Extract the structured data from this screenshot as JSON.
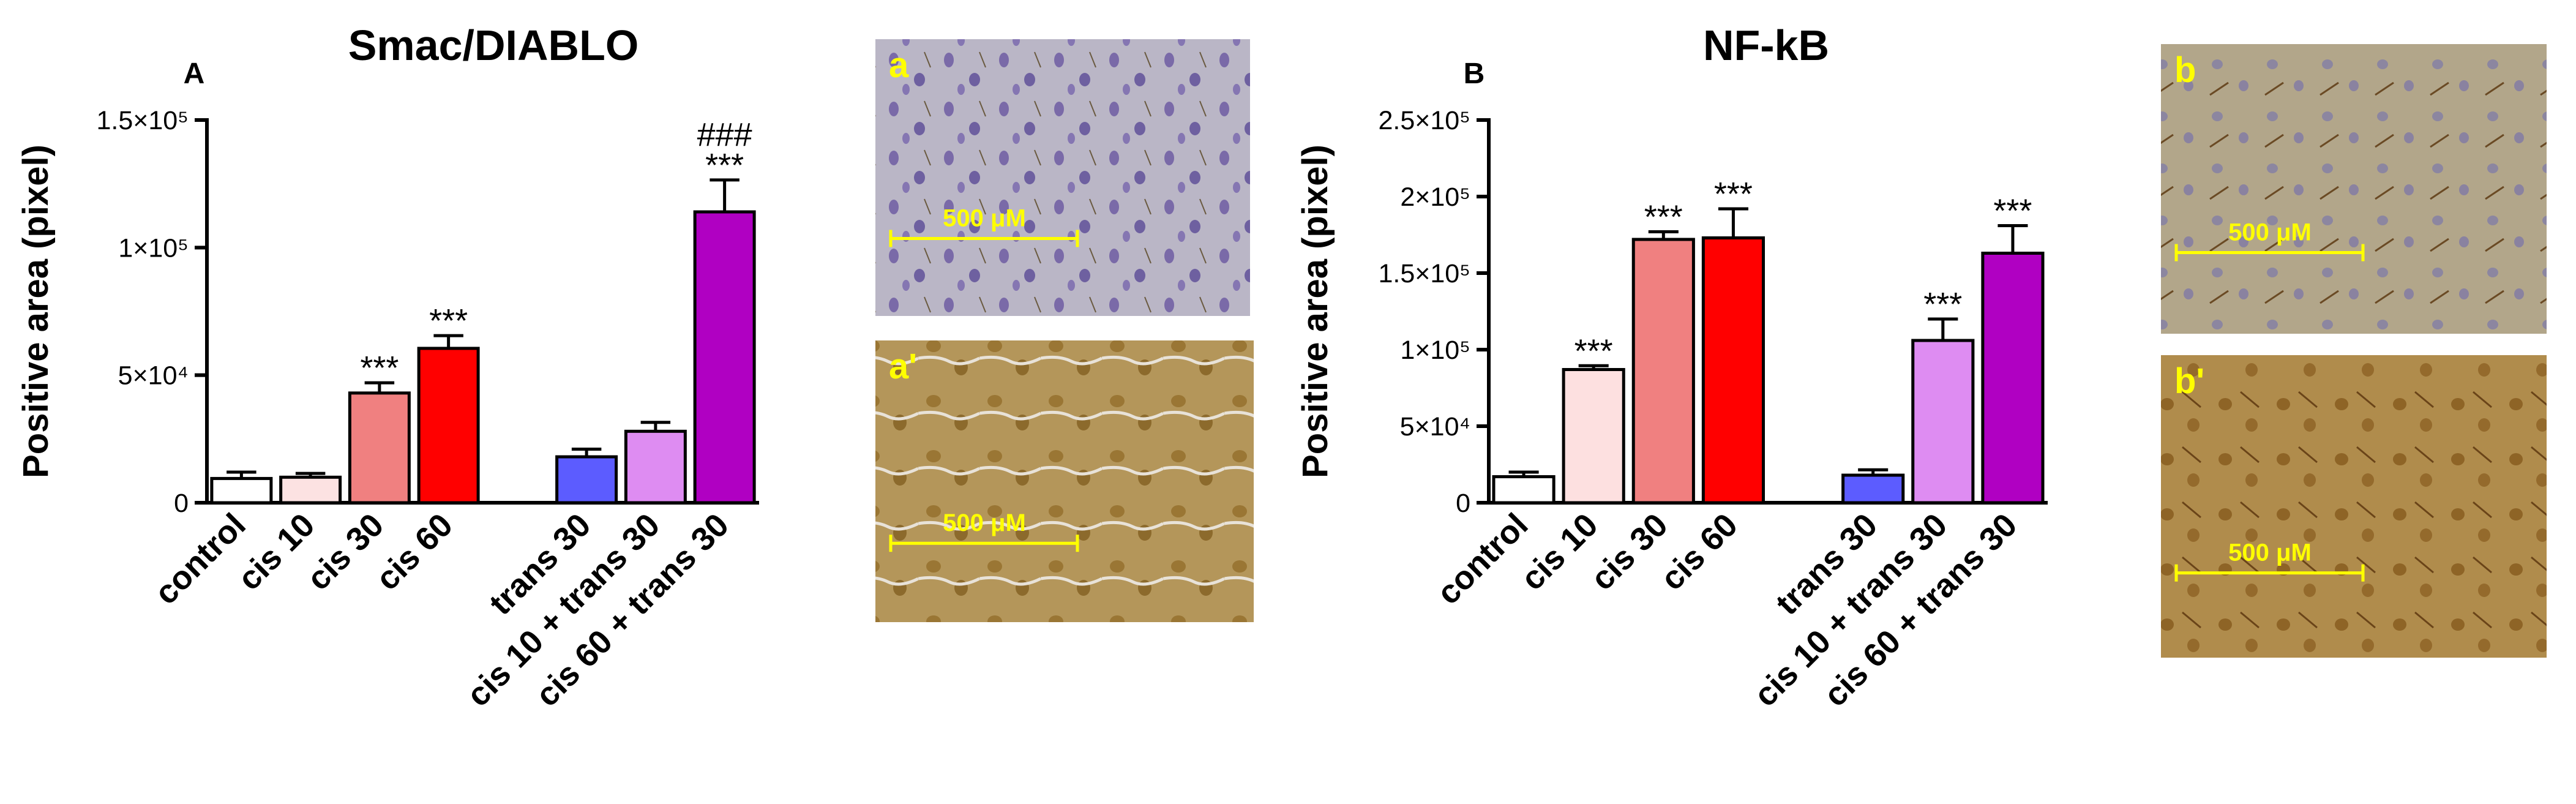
{
  "chart_data": [
    {
      "type": "bar",
      "title": "Smac/DIABLO",
      "panel_label": "A",
      "y_label": "Positive area (pixel)",
      "categories": [
        "control",
        "cis 10",
        "cis 30",
        "cis 60",
        null,
        "trans 30",
        "cis 10 + trans 30",
        "cis 60 + trans 30"
      ],
      "values": [
        9500,
        10000,
        43000,
        60500,
        null,
        18000,
        28000,
        114000
      ],
      "errors": [
        2500,
        1500,
        4000,
        5000,
        null,
        3000,
        3500,
        12500
      ],
      "colors": [
        "#ffffff",
        "#fce2e2",
        "#f08080",
        "#ff0000",
        null,
        "#5c5cff",
        "#de8cf2",
        "#b000c2"
      ],
      "stars": [
        null,
        null,
        "***",
        "***",
        null,
        null,
        null,
        "***"
      ],
      "hashes": [
        null,
        null,
        null,
        null,
        null,
        null,
        null,
        "###"
      ],
      "ylim": [
        0,
        150000
      ],
      "yticks": [
        0,
        {
          "value": 50000,
          "label": "5×10⁴"
        },
        {
          "value": 100000,
          "label": "1×10⁵"
        },
        {
          "value": 150000,
          "label": "1.5×10⁵"
        }
      ]
    },
    {
      "type": "bar",
      "title": "NF-kB",
      "panel_label": "B",
      "y_label": "Positive area (pixel)",
      "categories": [
        "control",
        "cis 10",
        "cis 30",
        "cis 60",
        null,
        "trans 30",
        "cis 10 + trans 30",
        "cis 60 + trans 30"
      ],
      "values": [
        17000,
        87000,
        172000,
        173000,
        null,
        18000,
        106000,
        163000
      ],
      "errors": [
        3000,
        2500,
        5000,
        19000,
        null,
        3500,
        14000,
        18000
      ],
      "colors": [
        "#ffffff",
        "#fde0e0",
        "#f08080",
        "#ff0000",
        null,
        "#5c5cff",
        "#de8cf2",
        "#b000c2"
      ],
      "stars": [
        null,
        "***",
        "***",
        "***",
        null,
        null,
        "***",
        "***"
      ],
      "hashes": [
        null,
        null,
        null,
        null,
        null,
        null,
        null,
        null
      ],
      "ylim": [
        0,
        250000
      ],
      "yticks": [
        0,
        {
          "value": 50000,
          "label": "5×10⁴"
        },
        {
          "value": 100000,
          "label": "1×10⁵"
        },
        {
          "value": 150000,
          "label": "1.5×10⁵"
        },
        {
          "value": 200000,
          "label": "2×10⁵"
        },
        {
          "value": 250000,
          "label": "2.5×10⁵"
        }
      ]
    }
  ],
  "micrographs": [
    {
      "label": "a",
      "scale_bar": "500 μM"
    },
    {
      "label": "a'",
      "scale_bar": "500 μM"
    },
    {
      "label": "b",
      "scale_bar": "500 μM"
    },
    {
      "label": "b'",
      "scale_bar": "500 μM"
    }
  ]
}
